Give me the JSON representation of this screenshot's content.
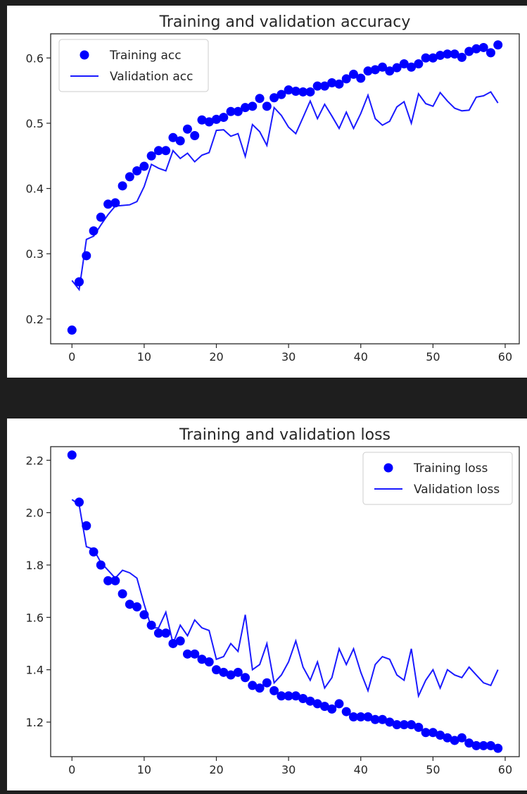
{
  "chart_data": [
    {
      "type": "scatter+line",
      "title": "Training and validation accuracy",
      "xlabel": "",
      "ylabel": "",
      "xlim": [
        -2.95,
        61.95
      ],
      "ylim": [
        0.162,
        0.637
      ],
      "xticks": [
        0,
        10,
        20,
        30,
        40,
        50,
        60
      ],
      "yticks": [
        0.2,
        0.3,
        0.4,
        0.5,
        0.6
      ],
      "ytick_labels": [
        "0.2",
        "0.3",
        "0.4",
        "0.5",
        "0.6"
      ],
      "grid": false,
      "legend_position": "top-left",
      "x": [
        0,
        1,
        2,
        3,
        4,
        5,
        6,
        7,
        8,
        9,
        10,
        11,
        12,
        13,
        14,
        15,
        16,
        17,
        18,
        19,
        20,
        21,
        22,
        23,
        24,
        25,
        26,
        27,
        28,
        29,
        30,
        31,
        32,
        33,
        34,
        35,
        36,
        37,
        38,
        39,
        40,
        41,
        42,
        43,
        44,
        45,
        46,
        47,
        48,
        49,
        50,
        51,
        52,
        53,
        54,
        55,
        56,
        57,
        58,
        59
      ],
      "series": [
        {
          "name": "Training acc",
          "style": "dots",
          "color": "#0000ff",
          "values": [
            0.183,
            0.257,
            0.297,
            0.335,
            0.356,
            0.376,
            0.378,
            0.404,
            0.418,
            0.427,
            0.434,
            0.45,
            0.458,
            0.458,
            0.478,
            0.473,
            0.491,
            0.481,
            0.505,
            0.502,
            0.506,
            0.509,
            0.518,
            0.518,
            0.524,
            0.526,
            0.538,
            0.526,
            0.539,
            0.544,
            0.551,
            0.549,
            0.548,
            0.548,
            0.557,
            0.557,
            0.562,
            0.56,
            0.568,
            0.575,
            0.569,
            0.58,
            0.582,
            0.586,
            0.58,
            0.585,
            0.591,
            0.586,
            0.591,
            0.6,
            0.6,
            0.604,
            0.606,
            0.606,
            0.601,
            0.61,
            0.614,
            0.616,
            0.608,
            0.62
          ]
        },
        {
          "name": "Validation acc",
          "style": "line",
          "color": "#1a1aff",
          "values": [
            0.259,
            0.245,
            0.322,
            0.327,
            0.344,
            0.36,
            0.373,
            0.374,
            0.375,
            0.38,
            0.403,
            0.437,
            0.431,
            0.427,
            0.458,
            0.446,
            0.454,
            0.441,
            0.451,
            0.455,
            0.489,
            0.49,
            0.48,
            0.484,
            0.449,
            0.498,
            0.487,
            0.466,
            0.524,
            0.512,
            0.494,
            0.484,
            0.509,
            0.534,
            0.507,
            0.529,
            0.511,
            0.492,
            0.517,
            0.492,
            0.515,
            0.543,
            0.507,
            0.497,
            0.503,
            0.525,
            0.533,
            0.5,
            0.545,
            0.53,
            0.526,
            0.547,
            0.534,
            0.523,
            0.519,
            0.52,
            0.54,
            0.542,
            0.548,
            0.531
          ]
        }
      ]
    },
    {
      "type": "scatter+line",
      "title": "Training and validation loss",
      "xlabel": "",
      "ylabel": "",
      "xlim": [
        -2.95,
        61.95
      ],
      "ylim": [
        1.068,
        2.252
      ],
      "xticks": [
        0,
        10,
        20,
        30,
        40,
        50,
        60
      ],
      "yticks": [
        1.2,
        1.4,
        1.6,
        1.8,
        2.0,
        2.2
      ],
      "ytick_labels": [
        "1.2",
        "1.4",
        "1.6",
        "1.8",
        "2.0",
        "2.2"
      ],
      "grid": false,
      "legend_position": "top-right",
      "x": [
        0,
        1,
        2,
        3,
        4,
        5,
        6,
        7,
        8,
        9,
        10,
        11,
        12,
        13,
        14,
        15,
        16,
        17,
        18,
        19,
        20,
        21,
        22,
        23,
        24,
        25,
        26,
        27,
        28,
        29,
        30,
        31,
        32,
        33,
        34,
        35,
        36,
        37,
        38,
        39,
        40,
        41,
        42,
        43,
        44,
        45,
        46,
        47,
        48,
        49,
        50,
        51,
        52,
        53,
        54,
        55,
        56,
        57,
        58,
        59
      ],
      "series": [
        {
          "name": "Training loss",
          "style": "dots",
          "color": "#0000ff",
          "values": [
            2.22,
            2.04,
            1.95,
            1.85,
            1.8,
            1.74,
            1.74,
            1.69,
            1.65,
            1.64,
            1.61,
            1.57,
            1.54,
            1.54,
            1.5,
            1.51,
            1.46,
            1.46,
            1.44,
            1.43,
            1.4,
            1.39,
            1.38,
            1.39,
            1.37,
            1.34,
            1.33,
            1.35,
            1.32,
            1.3,
            1.3,
            1.3,
            1.29,
            1.28,
            1.27,
            1.26,
            1.25,
            1.27,
            1.24,
            1.22,
            1.22,
            1.22,
            1.21,
            1.21,
            1.2,
            1.19,
            1.19,
            1.19,
            1.18,
            1.16,
            1.16,
            1.15,
            1.14,
            1.13,
            1.14,
            1.12,
            1.11,
            1.11,
            1.11,
            1.1
          ]
        },
        {
          "name": "Validation loss",
          "style": "line",
          "color": "#1a1aff",
          "values": [
            2.05,
            2.03,
            1.87,
            1.86,
            1.81,
            1.78,
            1.75,
            1.78,
            1.77,
            1.75,
            1.65,
            1.56,
            1.56,
            1.62,
            1.5,
            1.57,
            1.53,
            1.59,
            1.56,
            1.55,
            1.44,
            1.45,
            1.5,
            1.47,
            1.61,
            1.4,
            1.42,
            1.5,
            1.35,
            1.38,
            1.43,
            1.51,
            1.41,
            1.36,
            1.43,
            1.33,
            1.37,
            1.48,
            1.42,
            1.48,
            1.39,
            1.32,
            1.42,
            1.45,
            1.44,
            1.38,
            1.36,
            1.48,
            1.3,
            1.36,
            1.4,
            1.33,
            1.4,
            1.38,
            1.37,
            1.41,
            1.38,
            1.35,
            1.34,
            1.4
          ]
        }
      ]
    }
  ]
}
